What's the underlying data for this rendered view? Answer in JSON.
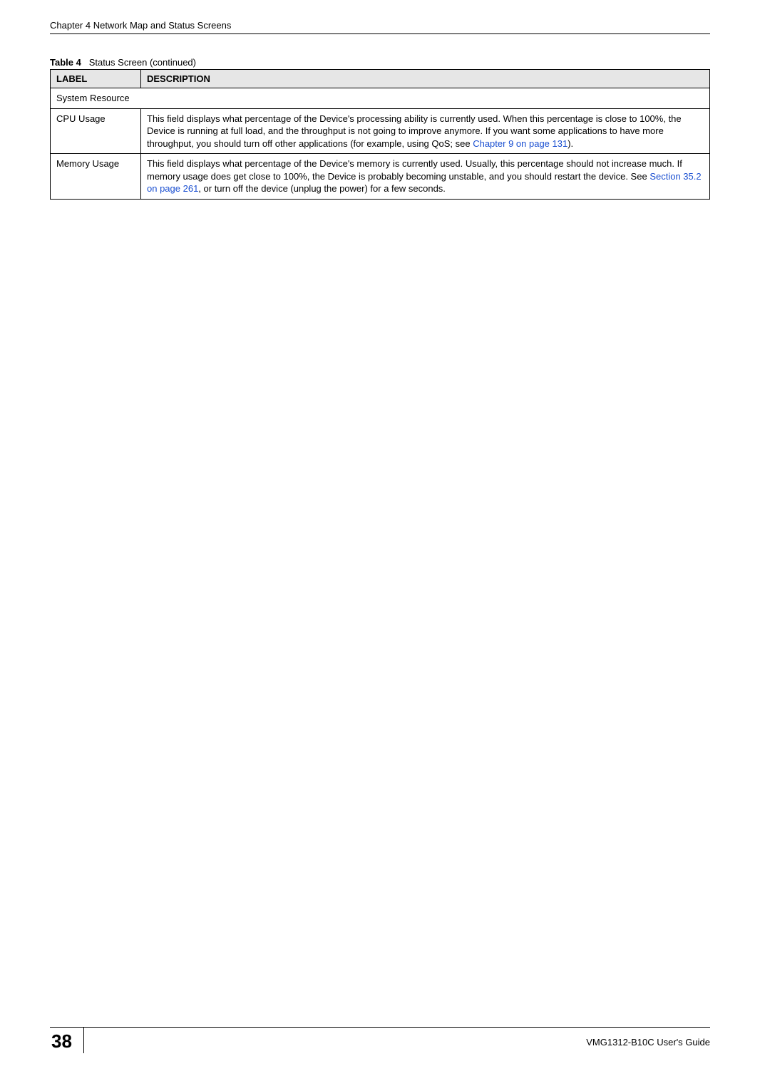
{
  "header": {
    "left": "Chapter 4 Network Map and Status Screens"
  },
  "table": {
    "caption_label": "Table 4",
    "caption_title": "Status Screen (continued)",
    "columns": {
      "label": "LABEL",
      "description": "DESCRIPTION"
    },
    "section_header": "System Resource",
    "rows": [
      {
        "label": "CPU Usage",
        "desc_prefix": "This field displays what percentage of the Device's processing ability is currently used. When this percentage is close to 100%, the Device is running at full load, and the throughput is not going to improve anymore. If you want some applications to have more throughput, you should turn off other applications (for example, using QoS; see ",
        "desc_link": "Chapter 9 on page 131",
        "desc_suffix": ")."
      },
      {
        "label": "Memory Usage",
        "desc_prefix": "This field displays what percentage of the Device's memory is currently used. Usually, this percentage should not increase much. If memory usage does get close to 100%, the Device is probably becoming unstable, and you should restart the device. See ",
        "desc_link": "Section 35.2 on page 261",
        "desc_suffix": ", or turn off the device (unplug the power) for a few seconds."
      }
    ]
  },
  "footer": {
    "page_number": "38",
    "guide": "VMG1312-B10C User's Guide"
  },
  "colors": {
    "link": "#1a4fd1",
    "header_bg": "#e6e6e6",
    "border": "#000000",
    "text": "#000000",
    "background": "#ffffff"
  }
}
